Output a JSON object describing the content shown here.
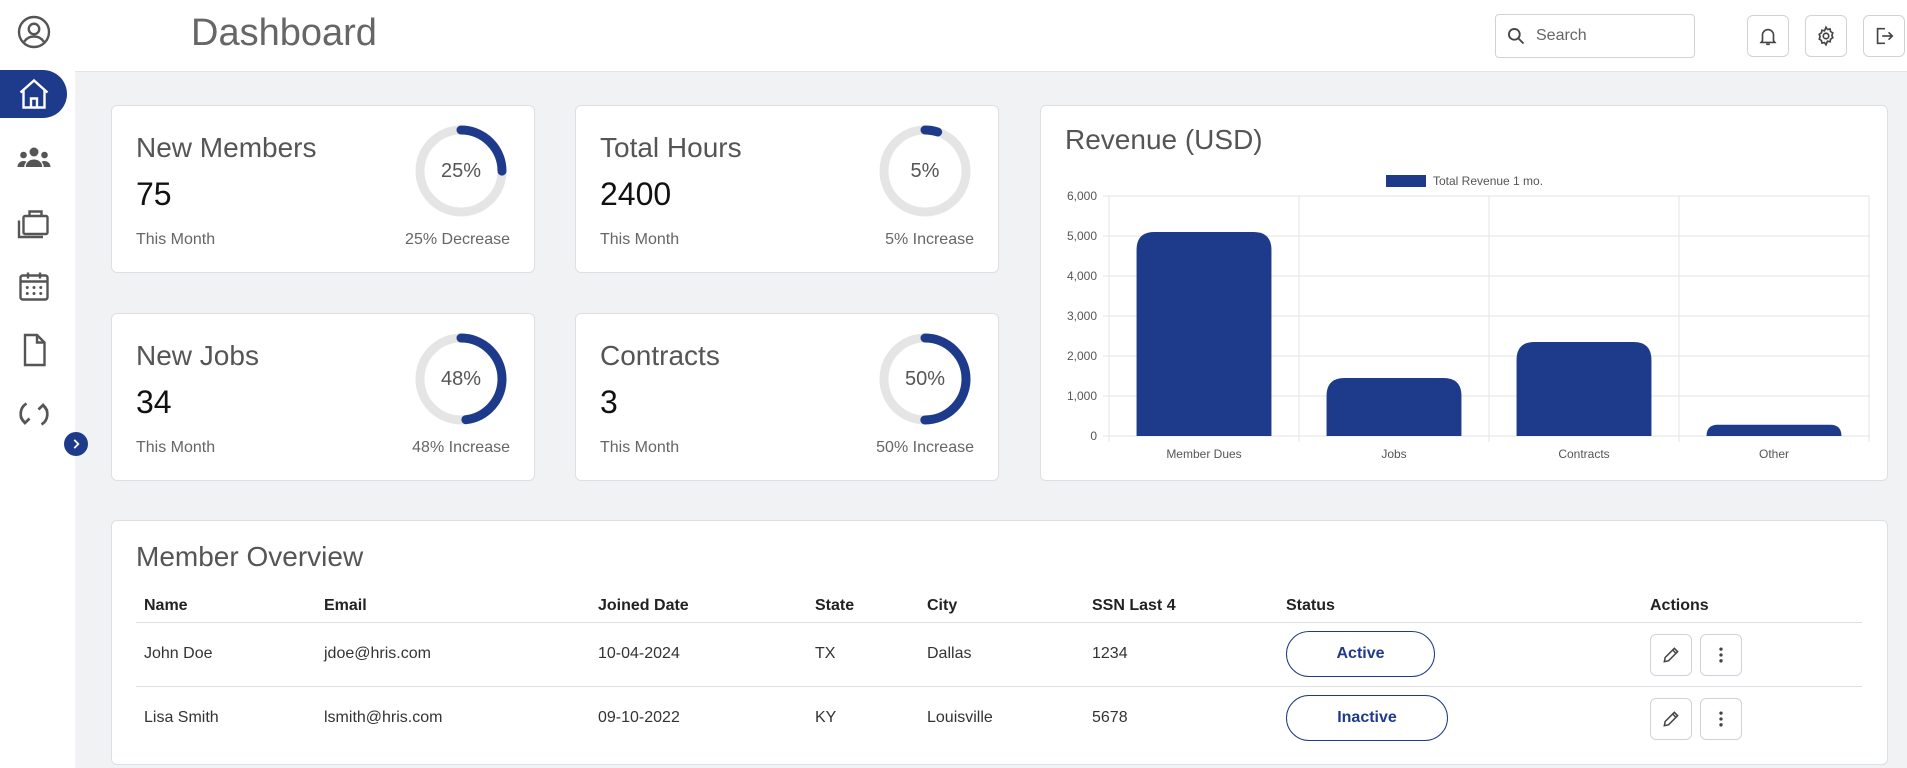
{
  "header": {
    "title": "Dashboard",
    "search_placeholder": "Search"
  },
  "sidebar": {
    "items": [
      {
        "icon": "user-circle-icon"
      },
      {
        "icon": "home-icon",
        "active": true
      },
      {
        "icon": "members-icon"
      },
      {
        "icon": "briefcase-icon"
      },
      {
        "icon": "calendar-icon"
      },
      {
        "icon": "document-icon"
      },
      {
        "icon": "sync-icon"
      }
    ]
  },
  "stats": [
    {
      "title": "New Members",
      "value": "75",
      "sub": "This Month",
      "change": "25% Decrease",
      "percent_label": "25%",
      "percent": 25
    },
    {
      "title": "Total Hours",
      "value": "2400",
      "sub": "This Month",
      "change": "5% Increase",
      "percent_label": "5%",
      "percent": 5
    },
    {
      "title": "New Jobs",
      "value": "34",
      "sub": "This Month",
      "change": "48% Increase",
      "percent_label": "48%",
      "percent": 48
    },
    {
      "title": "Contracts",
      "value": "3",
      "sub": "This Month",
      "change": "50% Increase",
      "percent_label": "50%",
      "percent": 50
    }
  ],
  "chart_data": {
    "type": "bar",
    "title": "Revenue (USD)",
    "categories": [
      "Member Dues",
      "Jobs",
      "Contracts",
      "Other"
    ],
    "series": [
      {
        "name": "Total Revenue 1 mo.",
        "values": [
          5100,
          1450,
          2350,
          280
        ]
      }
    ],
    "ylim": [
      0,
      6000
    ],
    "yticks": [
      "0",
      "1,000",
      "2,000",
      "3,000",
      "4,000",
      "5,000",
      "6,000"
    ],
    "grid": true,
    "legend": "top-center",
    "color": "#1e3a8a"
  },
  "table": {
    "title": "Member Overview",
    "columns": [
      "Name",
      "Email",
      "Joined Date",
      "State",
      "City",
      "SSN Last 4",
      "Status",
      "Actions"
    ],
    "rows": [
      {
        "name": "John Doe",
        "email": "jdoe@hris.com",
        "joined": "10-04-2024",
        "state": "TX",
        "city": "Dallas",
        "ssn": "1234",
        "status": "Active"
      },
      {
        "name": "Lisa Smith",
        "email": "lsmith@hris.com",
        "joined": "09-10-2022",
        "state": "KY",
        "city": "Louisville",
        "ssn": "5678",
        "status": "Inactive"
      }
    ]
  },
  "colors": {
    "accent": "#1e3a8a",
    "track": "#e5e5e5"
  }
}
